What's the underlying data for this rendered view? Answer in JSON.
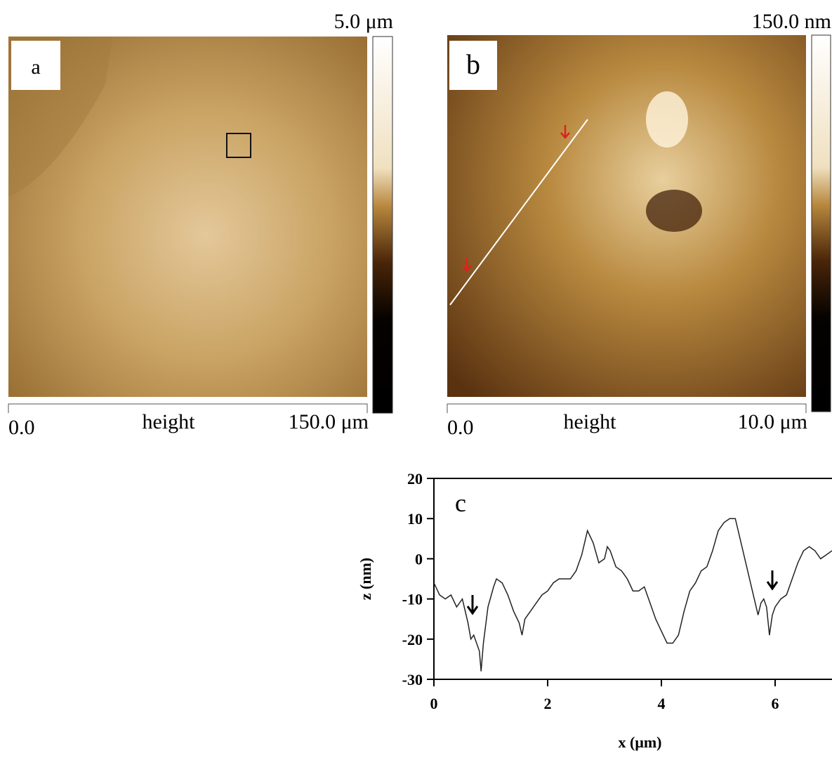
{
  "panels": [
    {
      "label": "a",
      "scale_max": "5.0 μm",
      "axis_start": "0.0",
      "axis_label": "height",
      "axis_end": "150.0 μm"
    },
    {
      "label": "b",
      "scale_max": "150.0 nm",
      "axis_start": "0.0",
      "axis_label": "height",
      "axis_end": "10.0 μm"
    }
  ],
  "chart_data": {
    "type": "line",
    "title": "c",
    "xlabel": "x (μm)",
    "ylabel": "z (nm)",
    "x": [
      0,
      0.1,
      0.2,
      0.3,
      0.4,
      0.5,
      0.6,
      0.65,
      0.7,
      0.75,
      0.8,
      0.83,
      0.87,
      0.95,
      1.05,
      1.1,
      1.2,
      1.3,
      1.4,
      1.5,
      1.55,
      1.6,
      1.7,
      1.8,
      1.9,
      2.0,
      2.1,
      2.2,
      2.3,
      2.4,
      2.5,
      2.6,
      2.7,
      2.8,
      2.9,
      3.0,
      3.05,
      3.1,
      3.2,
      3.3,
      3.4,
      3.5,
      3.6,
      3.7,
      3.8,
      3.9,
      4.0,
      4.1,
      4.2,
      4.3,
      4.4,
      4.5,
      4.6,
      4.7,
      4.8,
      4.9,
      5.0,
      5.1,
      5.2,
      5.3,
      5.4,
      5.5,
      5.6,
      5.7,
      5.75,
      5.8,
      5.85,
      5.9,
      5.95,
      6.0,
      6.1,
      6.2,
      6.3,
      6.4,
      6.5,
      6.6,
      6.7,
      6.8,
      6.9,
      7.0
    ],
    "series": [
      {
        "color": "#222222",
        "values": [
          -6,
          -9,
          -10,
          -9,
          -12,
          -10,
          -16,
          -20,
          -19,
          -21,
          -23,
          -28,
          -21,
          -12,
          -7,
          -5,
          -6,
          -9,
          -13,
          -16,
          -19,
          -15,
          -13,
          -11,
          -9,
          -8,
          -6,
          -5,
          -5,
          -5,
          -3,
          1,
          7,
          4,
          -1,
          0,
          3,
          2,
          -2,
          -3,
          -5,
          -8,
          -8,
          -7,
          -11,
          -15,
          -18,
          -21,
          -21,
          -19,
          -13,
          -8,
          -6,
          -3,
          -2,
          2,
          7,
          9,
          10,
          10,
          4,
          -2,
          -8,
          -14,
          -11,
          -10,
          -12,
          -19,
          -14,
          -12,
          -10,
          -9,
          -5,
          -1,
          2,
          3,
          2,
          0,
          1,
          2
        ]
      }
    ],
    "xlim": [
      0,
      7
    ],
    "ylim": [
      -30,
      20
    ],
    "xticks": [
      0,
      2,
      4,
      6
    ],
    "yticks": [
      -30,
      -20,
      -10,
      0,
      10,
      20
    ]
  }
}
